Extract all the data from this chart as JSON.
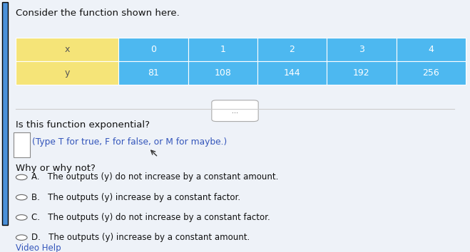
{
  "title": "Consider the function shown here.",
  "table": {
    "headers": [
      "x",
      "0",
      "1",
      "2",
      "3",
      "4"
    ],
    "row_y": [
      "y",
      "81",
      "108",
      "144",
      "192",
      "256"
    ],
    "header_bg": "#4db8f0",
    "label_bg": "#f5e478",
    "text_color_header": "#ffffff",
    "text_color_label": "#555555"
  },
  "separator_label": "...",
  "question": "Is this function exponential?",
  "instruction": "(Type T for true, F for false, or M for maybe.)",
  "why_label": "Why or why not?",
  "options": [
    "A.   The outputs (y) do not increase by a constant amount.",
    "B.   The outputs (y) increase by a constant factor.",
    "C.   The outputs (y) do not increase by a constant factor.",
    "D.   The outputs (y) increase by a constant amount."
  ],
  "footer": "Video Help",
  "bg_color": "#eef2f8",
  "left_bar_color": "#4a90d9"
}
